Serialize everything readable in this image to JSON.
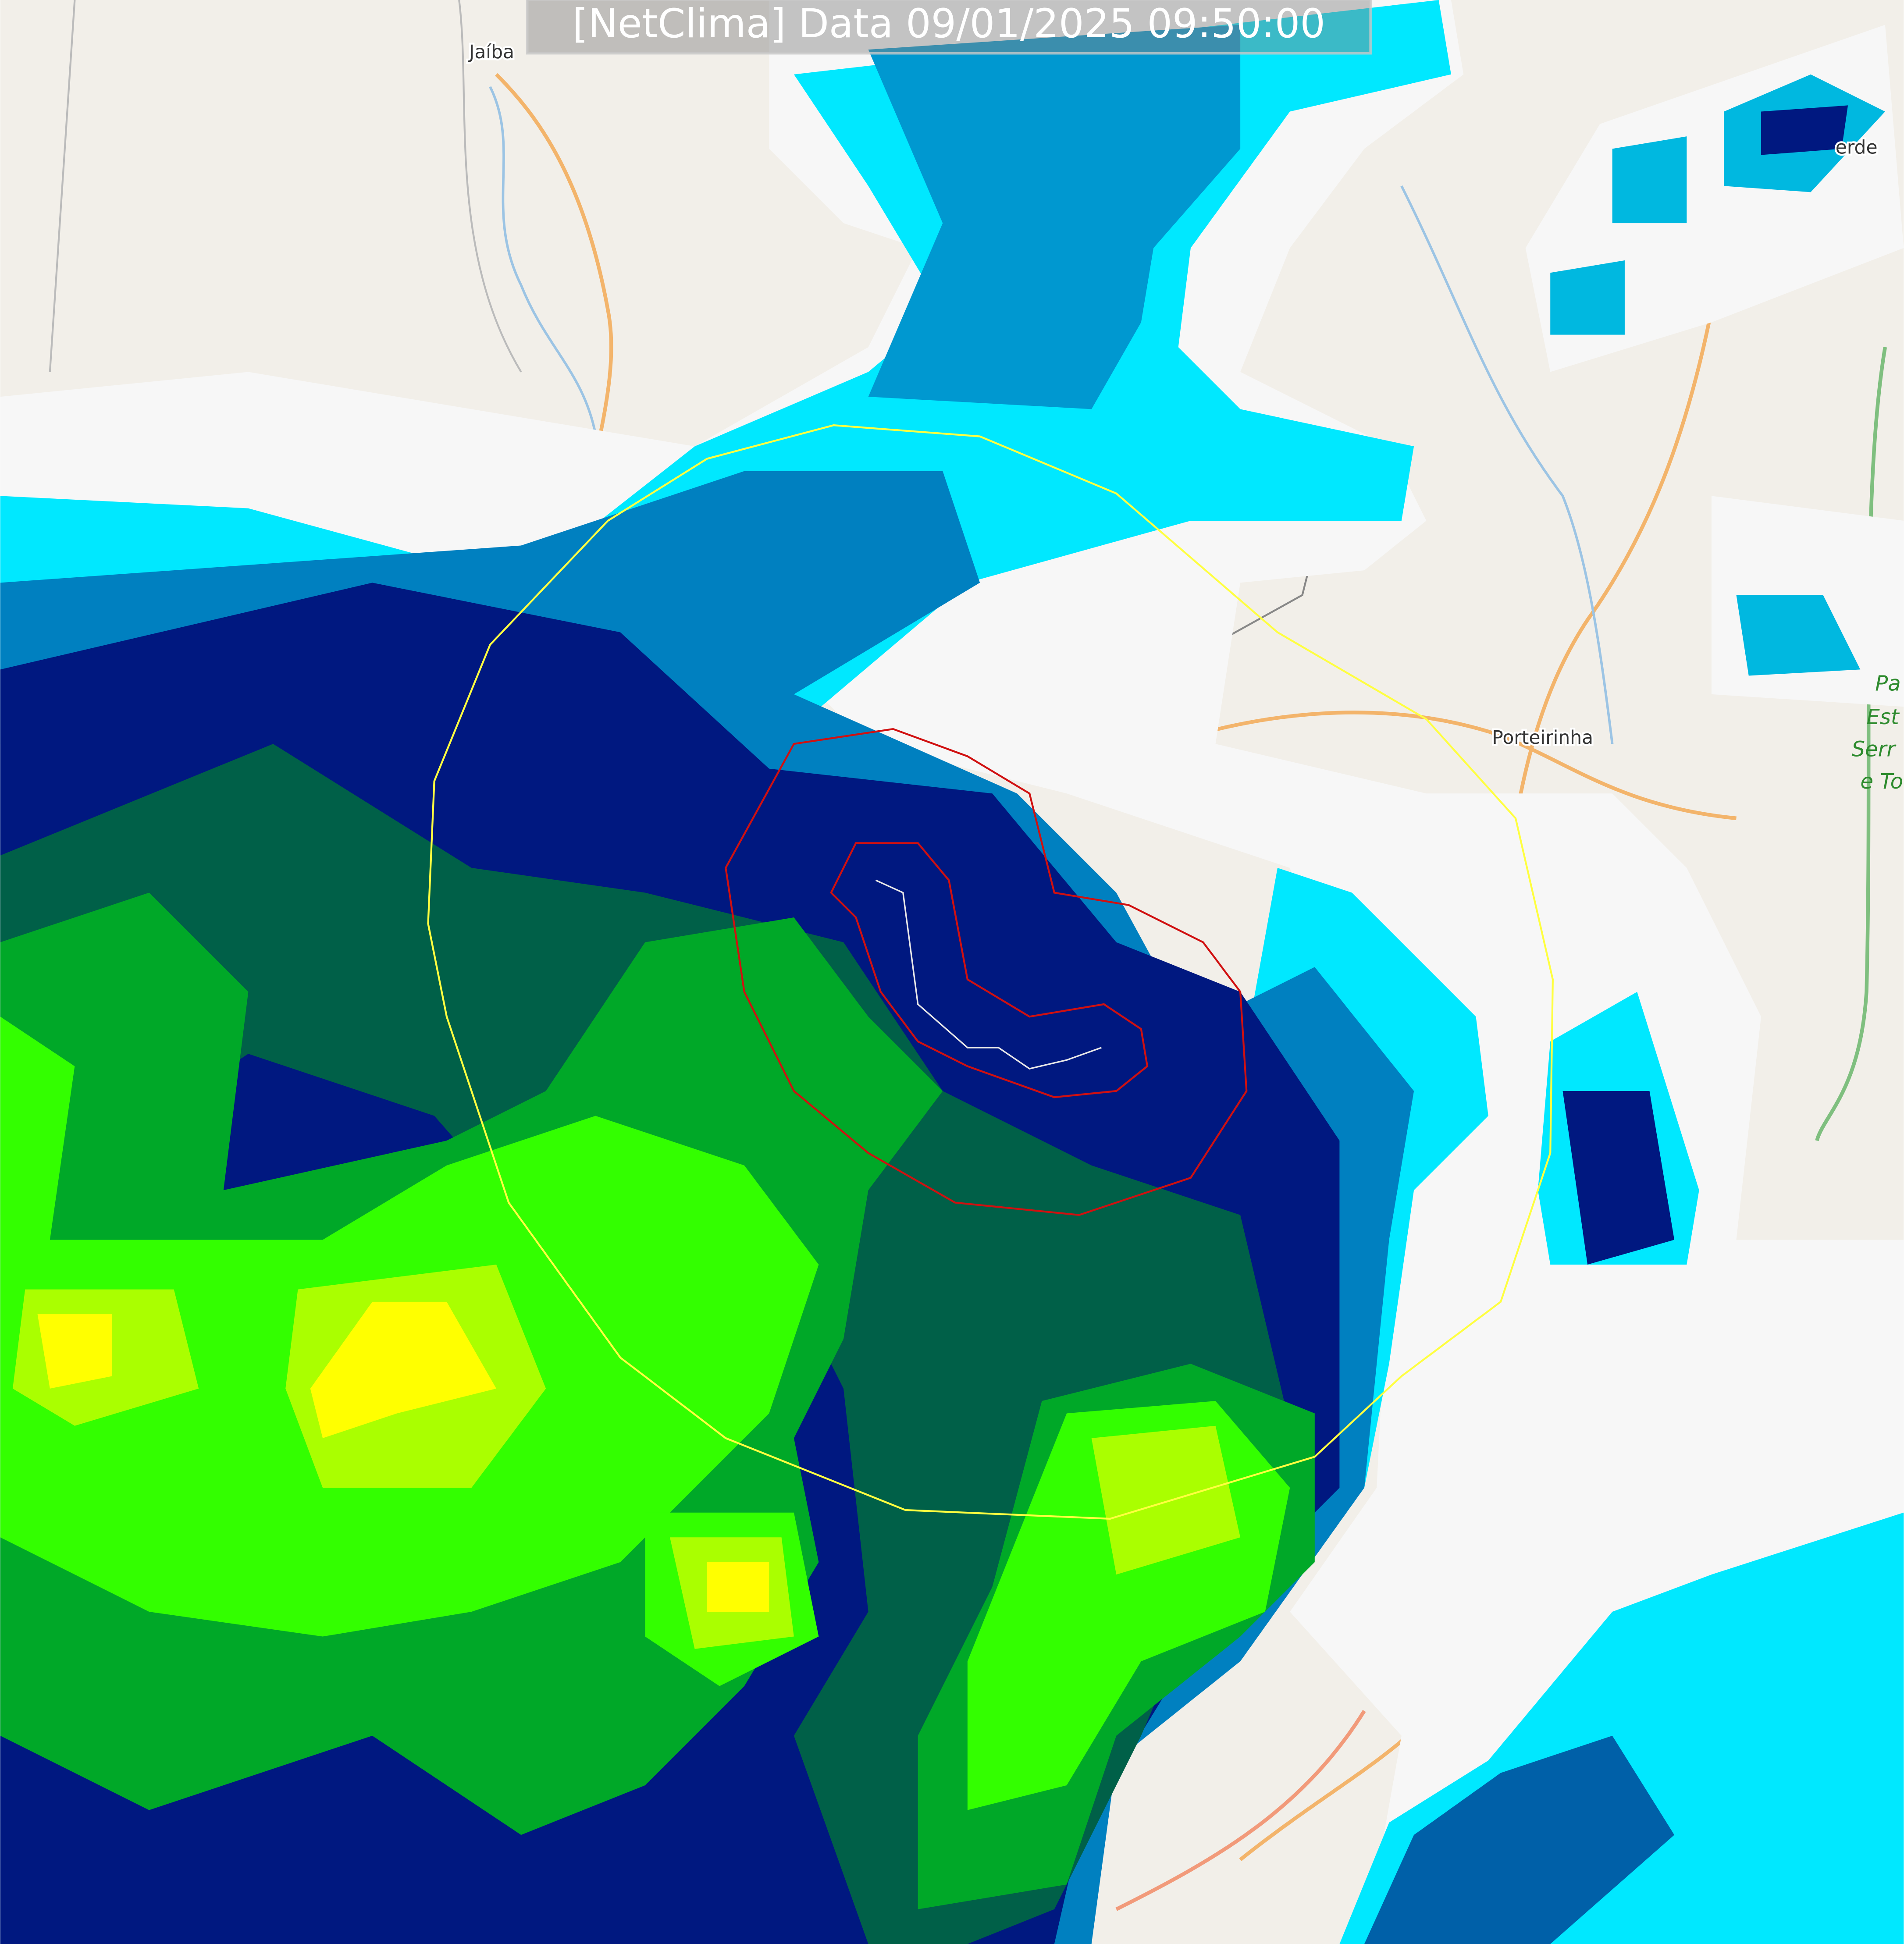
{
  "header": {
    "title": "[NetClima] Data 09/01/2025 09:50:00"
  },
  "map": {
    "labels": [
      "Jaíba",
      "Porteirinha",
      "erde"
    ],
    "park_label": [
      "Pa",
      "Est",
      "Serr",
      "e To"
    ]
  }
}
